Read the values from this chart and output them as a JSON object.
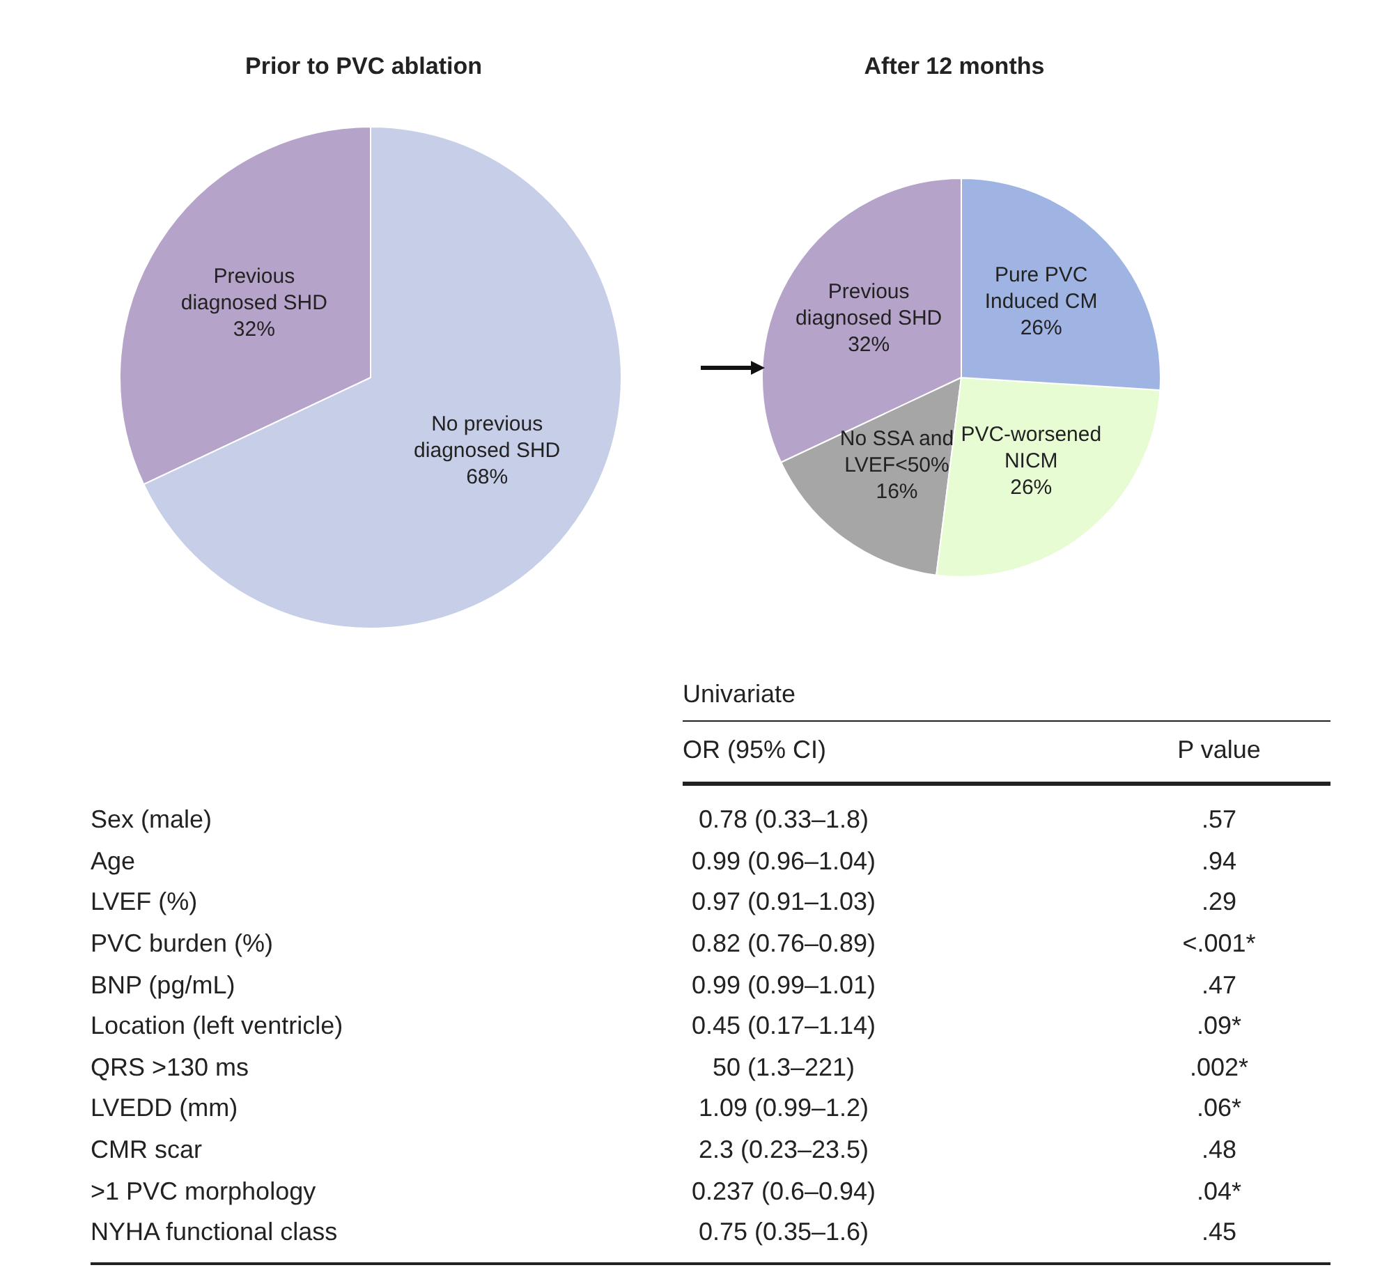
{
  "chart_data": [
    {
      "type": "pie",
      "title": "Prior to PVC ablation",
      "categories": [
        "Previous diagnosed SHD",
        "No previous diagnosed SHD"
      ],
      "values": [
        32,
        68
      ],
      "value_labels": [
        "32%",
        "68%"
      ],
      "colors": [
        "#b5a3c9",
        "#c6cee8"
      ]
    },
    {
      "type": "pie",
      "title": "After 12 months",
      "categories": [
        "Previous diagnosed SHD",
        "No SSA and LVEF<50%",
        "PVC-worsened NICM",
        "Pure PVC Induced CM"
      ],
      "values": [
        32,
        16,
        26,
        26
      ],
      "value_labels": [
        "32%",
        "16%",
        "26%",
        "26%"
      ],
      "colors": [
        "#b5a3c9",
        "#a6a6a6",
        "#e8fcd4",
        "#9fb4e2"
      ]
    },
    {
      "type": "other",
      "title": "Univariate",
      "annotations": [
        "OR (95% CI)",
        "P value",
        "Sex (male)",
        "0.78 (0.33–1.8)",
        ".57",
        "Age",
        "0.99 (0.96–1.04)",
        ".94",
        "LVEF (%)",
        "0.97 (0.91–1.03)",
        ".29",
        "PVC burden (%)",
        "0.82 (0.76–0.89)",
        "<.001*",
        "BNP (pg/mL)",
        "0.99 (0.99–1.01)",
        ".47",
        "Location (left ventricle)",
        "0.45 (0.17–1.14)",
        ".09*",
        "QRS >130 ms",
        "50 (1.3–221)",
        ".002*",
        "LVEDD (mm)",
        "1.09 (0.99–1.2)",
        ".06*",
        "CMR scar",
        "2.3 (0.23–23.5)",
        ".48",
        ">1 PVC morphology",
        "0.237 (0.6–0.94)",
        ".04*",
        "NYHA functional class",
        "0.75 (0.35–1.6)",
        ".45"
      ]
    }
  ]
}
